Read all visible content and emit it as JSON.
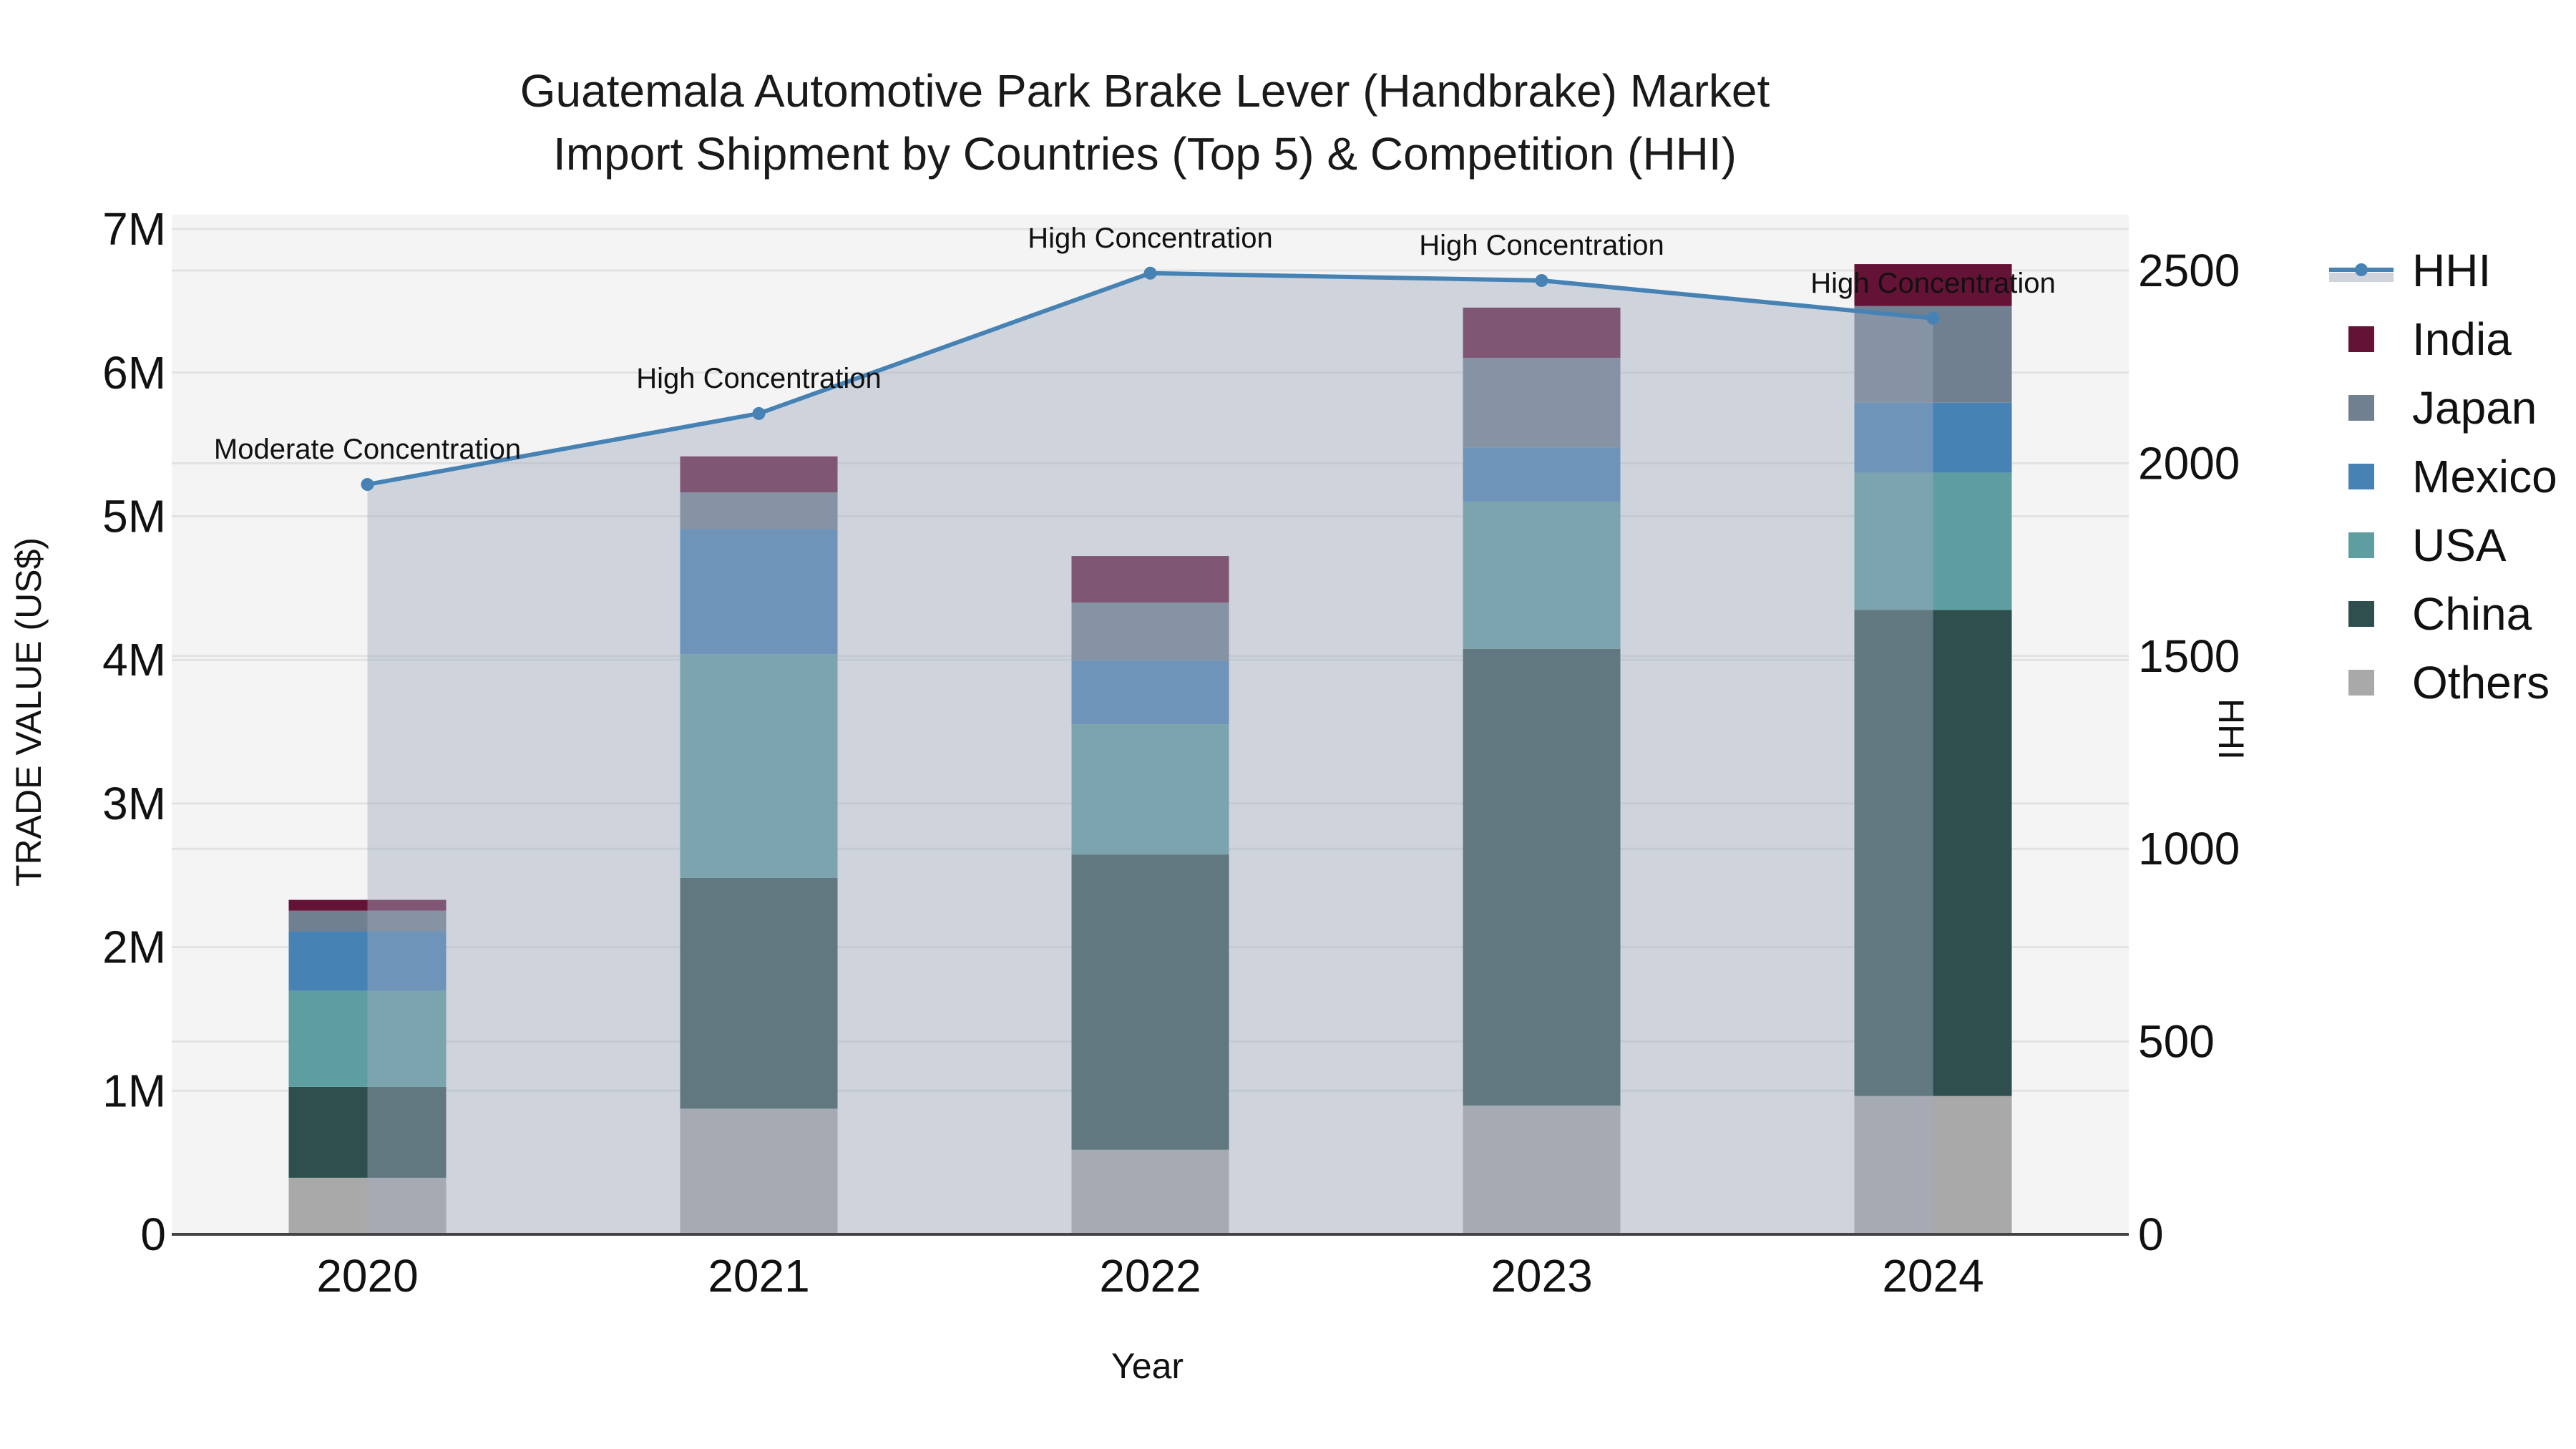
{
  "title": {
    "line1": "Guatemala Automotive Park Brake Lever (Handbrake) Market",
    "line2": "Import Shipment by Countries (Top 5) & Competition (HHI)"
  },
  "axes": {
    "x_title": "Year",
    "y_left_title": "TRADE VALUE (US$)",
    "y_right_title": "HHI",
    "y_left_ticks": [
      "0",
      "1M",
      "2M",
      "3M",
      "4M",
      "5M",
      "6M",
      "7M"
    ],
    "y_right_ticks": [
      "0",
      "500",
      "1000",
      "1500",
      "2000",
      "2500"
    ],
    "x_ticks": [
      "2020",
      "2021",
      "2022",
      "2023",
      "2024"
    ]
  },
  "legend": [
    {
      "name": "HHI",
      "color": "#4682b4",
      "type": "line"
    },
    {
      "name": "India",
      "color": "#641236",
      "type": "bar"
    },
    {
      "name": "Japan",
      "color": "#708090",
      "type": "bar"
    },
    {
      "name": "Mexico",
      "color": "#4682b4",
      "type": "bar"
    },
    {
      "name": "USA",
      "color": "#5f9ea0",
      "type": "bar"
    },
    {
      "name": "China",
      "color": "#2f4f4f",
      "type": "bar"
    },
    {
      "name": "Others",
      "color": "#a9a9a9",
      "type": "bar"
    }
  ],
  "chart_data": {
    "type": "bar",
    "stacked": true,
    "title": "Guatemala Automotive Park Brake Lever (Handbrake) Market Import Shipment by Countries (Top 5) & Competition (HHI)",
    "xlabel": "Year",
    "ylabel": "TRADE VALUE (US$)",
    "y2label": "HHI",
    "categories": [
      "2020",
      "2021",
      "2022",
      "2023",
      "2024"
    ],
    "ylim": [
      0,
      7000000
    ],
    "y2lim": [
      0,
      2600
    ],
    "series": [
      {
        "name": "Others",
        "color": "#a9a9a9",
        "values": [
          394000,
          875000,
          589000,
          897000,
          963000
        ]
      },
      {
        "name": "China",
        "color": "#2f4f4f",
        "values": [
          633000,
          1607000,
          2056000,
          3180000,
          3385000
        ]
      },
      {
        "name": "USA",
        "color": "#5f9ea0",
        "values": [
          668000,
          1558000,
          907000,
          1025000,
          955000
        ]
      },
      {
        "name": "Mexico",
        "color": "#4682b4",
        "values": [
          415000,
          870000,
          443000,
          377000,
          488000
        ]
      },
      {
        "name": "Japan",
        "color": "#708090",
        "values": [
          144000,
          256000,
          404000,
          624000,
          673000
        ]
      },
      {
        "name": "India",
        "color": "#641236",
        "values": [
          75000,
          251000,
          324000,
          350000,
          292000
        ]
      }
    ],
    "line_series": {
      "name": "HHI",
      "axis": "right",
      "color": "#4682b4",
      "fill": "tozeroy",
      "values": [
        1945,
        2129,
        2493,
        2474,
        2376
      ],
      "annotations": [
        "Moderate Concentration",
        "High Concentration",
        "High Concentration",
        "High Concentration",
        "High Concentration"
      ]
    },
    "grid": true,
    "legend_position": "right"
  }
}
